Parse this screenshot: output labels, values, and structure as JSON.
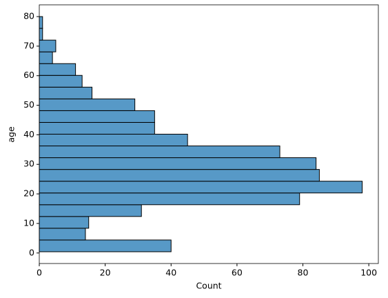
{
  "chart_data": {
    "type": "histogram",
    "orientation": "horizontal",
    "xlabel": "Count",
    "ylabel": "age",
    "bins": [
      0.42,
      4.399,
      8.378,
      12.357,
      16.336,
      20.315,
      24.294,
      28.273,
      32.252,
      36.231,
      40.21,
      44.189,
      48.168,
      52.147,
      56.126,
      60.105,
      64.084,
      68.063,
      72.042,
      76.021,
      80
    ],
    "values": [
      40,
      14,
      15,
      31,
      79,
      98,
      85,
      84,
      73,
      45,
      35,
      35,
      29,
      16,
      13,
      11,
      4,
      5,
      1,
      1
    ],
    "color": "#5799c7",
    "edgecolor": "#000000",
    "xlim": [
      0,
      102.9
    ],
    "xticks": [
      0,
      20,
      40,
      60,
      80,
      100
    ],
    "ylim": [
      -3.559,
      83.979
    ],
    "yticks": [
      0,
      10,
      20,
      30,
      40,
      50,
      60,
      70,
      80
    ],
    "grid": false
  }
}
